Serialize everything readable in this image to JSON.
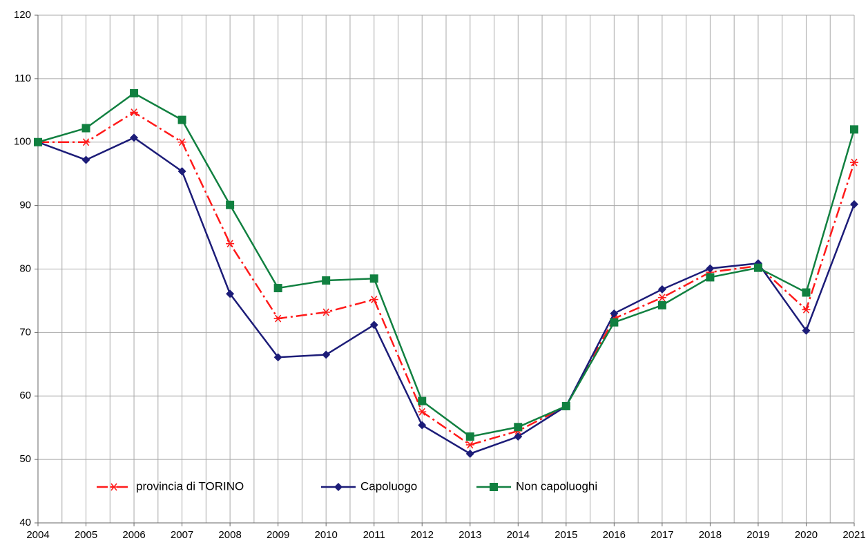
{
  "chart_data": {
    "type": "line",
    "categories": [
      "2004",
      "2005",
      "2006",
      "2007",
      "2008",
      "2009",
      "2010",
      "2011",
      "2012",
      "2013",
      "2014",
      "2015",
      "2016",
      "2017",
      "2018",
      "2019",
      "2020",
      "2021"
    ],
    "series": [
      {
        "name": "provincia di TORINO",
        "color": "#ff1a1a",
        "line_style": "dashdot",
        "marker": "asterisk",
        "values": [
          100,
          100,
          104.7,
          100,
          84,
          72.2,
          73.2,
          75.2,
          57.5,
          52.3,
          54.5,
          58.4,
          72.2,
          75.5,
          79.5,
          80.5,
          73.6,
          96.8
        ]
      },
      {
        "name": "Capoluogo",
        "color": "#1c1c78",
        "line_style": "solid",
        "marker": "diamond",
        "values": [
          100,
          97.2,
          100.7,
          95.4,
          76.1,
          66.1,
          66.5,
          71.2,
          55.4,
          50.9,
          53.6,
          58.4,
          73,
          76.8,
          80.1,
          80.9,
          70.3,
          90.2
        ]
      },
      {
        "name": "Non capoluoghi",
        "color": "#118040",
        "line_style": "solid",
        "marker": "square",
        "values": [
          100,
          102.2,
          107.7,
          103.5,
          90.1,
          77,
          78.2,
          78.5,
          59.2,
          53.6,
          55.1,
          58.4,
          71.6,
          74.3,
          78.7,
          80.2,
          76.3,
          102
        ]
      }
    ],
    "ylim": [
      40,
      120
    ],
    "yticks": [
      40,
      50,
      60,
      70,
      80,
      90,
      100,
      110,
      120
    ],
    "grid": true,
    "legend": "lower left"
  }
}
